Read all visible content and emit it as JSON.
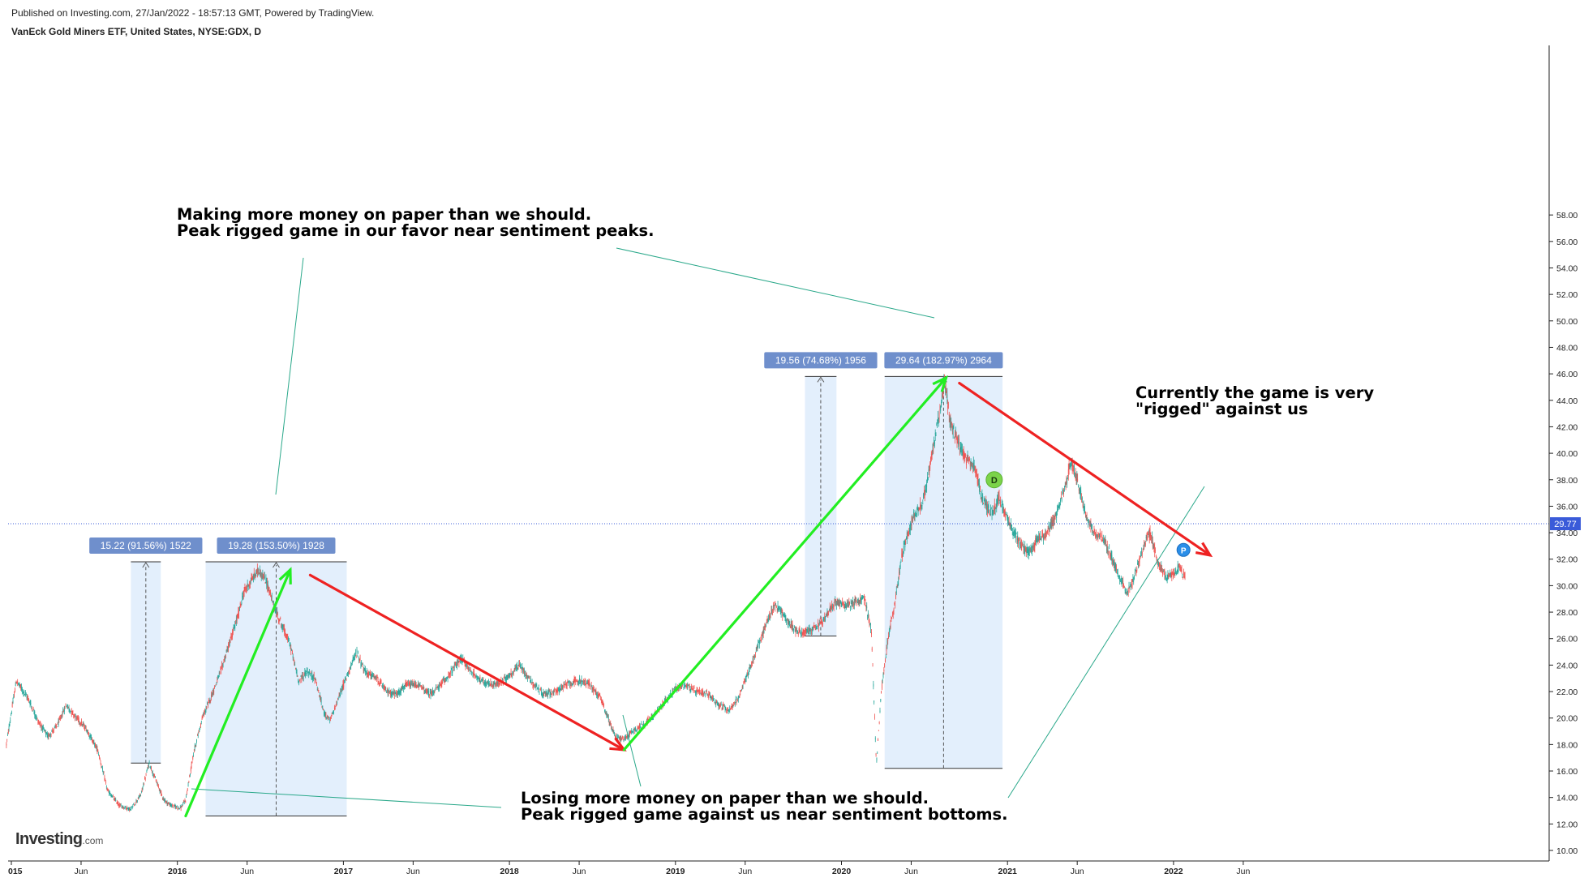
{
  "header": {
    "published": "Published on Investing.com, 27/Jan/2022 - 18:57:13 GMT, Powered by TradingView.",
    "symbol": "VanEck Gold Miners ETF, United States, NYSE:GDX, D"
  },
  "logo": {
    "main": "Investing",
    "sub": ".com"
  },
  "chart_data": {
    "type": "candlestick",
    "title": "VanEck Gold Miners ETF, United States, NYSE:GDX, D",
    "ylim": [
      9.0,
      59.0
    ],
    "y_ticks": [
      "10.00",
      "12.00",
      "14.00",
      "16.00",
      "18.00",
      "20.00",
      "22.00",
      "24.00",
      "26.00",
      "28.00",
      "30.00",
      "32.00",
      "34.00",
      "36.00",
      "38.00",
      "40.00",
      "42.00",
      "44.00",
      "46.00",
      "48.00",
      "50.00",
      "52.00",
      "54.00",
      "56.00",
      "58.00"
    ],
    "x_ticks": [
      {
        "label": "015",
        "t": 2015.0
      },
      {
        "label": "Jun",
        "t": 2015.42
      },
      {
        "label": "2016",
        "t": 2016.0
      },
      {
        "label": "Jun",
        "t": 2016.42
      },
      {
        "label": "2017",
        "t": 2017.0
      },
      {
        "label": "Jun",
        "t": 2017.42
      },
      {
        "label": "2018",
        "t": 2018.0
      },
      {
        "label": "Jun",
        "t": 2018.42
      },
      {
        "label": "2019",
        "t": 2019.0
      },
      {
        "label": "Jun",
        "t": 2019.42
      },
      {
        "label": "2020",
        "t": 2020.0
      },
      {
        "label": "Jun",
        "t": 2020.42
      },
      {
        "label": "2021",
        "t": 2021.0
      },
      {
        "label": "Jun",
        "t": 2021.42
      },
      {
        "label": "2022",
        "t": 2022.0
      },
      {
        "label": "Jun",
        "t": 2022.42
      }
    ],
    "last_price": "29.77",
    "price_path": [
      [
        2014.97,
        18.0
      ],
      [
        2015.03,
        22.8
      ],
      [
        2015.1,
        21.5
      ],
      [
        2015.16,
        19.8
      ],
      [
        2015.22,
        18.6
      ],
      [
        2015.28,
        19.5
      ],
      [
        2015.33,
        21.0
      ],
      [
        2015.38,
        20.2
      ],
      [
        2015.45,
        19.2
      ],
      [
        2015.52,
        17.6
      ],
      [
        2015.58,
        14.5
      ],
      [
        2015.65,
        13.4
      ],
      [
        2015.72,
        13.1
      ],
      [
        2015.78,
        14.2
      ],
      [
        2015.83,
        16.6
      ],
      [
        2015.87,
        15.3
      ],
      [
        2015.92,
        13.8
      ],
      [
        2015.96,
        13.4
      ],
      [
        2016.02,
        13.2
      ],
      [
        2016.05,
        13.8
      ],
      [
        2016.1,
        17.5
      ],
      [
        2016.15,
        20.0
      ],
      [
        2016.2,
        21.5
      ],
      [
        2016.26,
        23.5
      ],
      [
        2016.31,
        25.5
      ],
      [
        2016.36,
        27.5
      ],
      [
        2016.4,
        29.5
      ],
      [
        2016.45,
        30.5
      ],
      [
        2016.49,
        31.2
      ],
      [
        2016.54,
        30.2
      ],
      [
        2016.58,
        28.5
      ],
      [
        2016.63,
        27.0
      ],
      [
        2016.68,
        25.5
      ],
      [
        2016.73,
        22.8
      ],
      [
        2016.78,
        23.5
      ],
      [
        2016.83,
        23.0
      ],
      [
        2016.88,
        20.5
      ],
      [
        2016.92,
        19.8
      ],
      [
        2016.97,
        21.5
      ],
      [
        2017.03,
        23.5
      ],
      [
        2017.08,
        25.0
      ],
      [
        2017.13,
        23.5
      ],
      [
        2017.2,
        23.0
      ],
      [
        2017.26,
        22.0
      ],
      [
        2017.32,
        21.8
      ],
      [
        2017.38,
        22.5
      ],
      [
        2017.45,
        22.5
      ],
      [
        2017.52,
        21.8
      ],
      [
        2017.58,
        22.4
      ],
      [
        2017.65,
        23.5
      ],
      [
        2017.71,
        24.5
      ],
      [
        2017.77,
        23.5
      ],
      [
        2017.85,
        22.6
      ],
      [
        2017.92,
        22.5
      ],
      [
        2018.0,
        23.2
      ],
      [
        2018.06,
        24.0
      ],
      [
        2018.13,
        22.8
      ],
      [
        2018.2,
        21.8
      ],
      [
        2018.28,
        22.0
      ],
      [
        2018.35,
        22.6
      ],
      [
        2018.42,
        22.8
      ],
      [
        2018.48,
        22.6
      ],
      [
        2018.55,
        21.5
      ],
      [
        2018.6,
        19.8
      ],
      [
        2018.64,
        18.6
      ],
      [
        2018.69,
        18.4
      ],
      [
        2018.74,
        19.0
      ],
      [
        2018.8,
        19.5
      ],
      [
        2018.86,
        20.0
      ],
      [
        2018.92,
        21.0
      ],
      [
        2019.0,
        22.2
      ],
      [
        2019.06,
        22.5
      ],
      [
        2019.12,
        22.0
      ],
      [
        2019.2,
        21.8
      ],
      [
        2019.26,
        21.0
      ],
      [
        2019.32,
        20.6
      ],
      [
        2019.38,
        21.5
      ],
      [
        2019.44,
        23.5
      ],
      [
        2019.5,
        25.5
      ],
      [
        2019.56,
        27.5
      ],
      [
        2019.6,
        28.6
      ],
      [
        2019.64,
        28.0
      ],
      [
        2019.68,
        27.2
      ],
      [
        2019.74,
        26.5
      ],
      [
        2019.8,
        26.5
      ],
      [
        2019.86,
        27.0
      ],
      [
        2019.9,
        27.5
      ],
      [
        2019.96,
        28.8
      ],
      [
        2020.02,
        28.5
      ],
      [
        2020.08,
        28.8
      ],
      [
        2020.14,
        29.0
      ],
      [
        2020.18,
        26.5
      ],
      [
        2020.2,
        20.0
      ],
      [
        2020.21,
        16.5
      ],
      [
        2020.24,
        22.0
      ],
      [
        2020.28,
        26.0
      ],
      [
        2020.32,
        28.5
      ],
      [
        2020.36,
        32.0
      ],
      [
        2020.4,
        34.0
      ],
      [
        2020.44,
        35.5
      ],
      [
        2020.48,
        36.0
      ],
      [
        2020.52,
        38.0
      ],
      [
        2020.56,
        41.0
      ],
      [
        2020.59,
        43.0
      ],
      [
        2020.62,
        45.5
      ],
      [
        2020.66,
        42.0
      ],
      [
        2020.7,
        41.0
      ],
      [
        2020.75,
        39.5
      ],
      [
        2020.8,
        39.0
      ],
      [
        2020.85,
        36.5
      ],
      [
        2020.9,
        35.5
      ],
      [
        2020.95,
        36.5
      ],
      [
        2021.0,
        35.0
      ],
      [
        2021.04,
        34.0
      ],
      [
        2021.08,
        33.0
      ],
      [
        2021.13,
        32.5
      ],
      [
        2021.18,
        33.5
      ],
      [
        2021.24,
        34.0
      ],
      [
        2021.3,
        35.5
      ],
      [
        2021.36,
        38.0
      ],
      [
        2021.38,
        39.5
      ],
      [
        2021.42,
        38.0
      ],
      [
        2021.47,
        35.5
      ],
      [
        2021.52,
        34.0
      ],
      [
        2021.58,
        33.5
      ],
      [
        2021.63,
        32.0
      ],
      [
        2021.68,
        30.5
      ],
      [
        2021.72,
        29.5
      ],
      [
        2021.76,
        30.5
      ],
      [
        2021.82,
        33.0
      ],
      [
        2021.86,
        34.0
      ],
      [
        2021.9,
        32.0
      ],
      [
        2021.96,
        30.5
      ],
      [
        2022.0,
        30.8
      ],
      [
        2022.04,
        31.5
      ],
      [
        2022.07,
        30.5
      ]
    ],
    "measure_boxes": [
      {
        "label": "15.22 (91.56%) 1522",
        "t0": 2015.72,
        "t1": 2015.9,
        "low": 16.6,
        "high": 31.8
      },
      {
        "label": "19.28 (153.50%) 1928",
        "t0": 2016.17,
        "t1": 2017.02,
        "low": 12.6,
        "high": 31.8
      },
      {
        "label": "19.56 (74.68%) 1956",
        "t0": 2019.78,
        "t1": 2019.97,
        "low": 26.2,
        "high": 45.8
      },
      {
        "label": "29.64 (182.97%) 2964",
        "t0": 2020.26,
        "t1": 2020.97,
        "low": 16.2,
        "high": 45.8
      }
    ],
    "arrows": [
      {
        "color": "green",
        "from": [
          2016.05,
          12.6
        ],
        "to": [
          2016.68,
          31.2
        ]
      },
      {
        "color": "red",
        "from": [
          2016.8,
          30.8
        ],
        "to": [
          2018.69,
          17.6
        ]
      },
      {
        "color": "green",
        "from": [
          2018.69,
          17.6
        ],
        "to": [
          2020.63,
          45.7
        ]
      },
      {
        "color": "red",
        "from": [
          2020.71,
          45.3
        ],
        "to": [
          2022.22,
          32.3
        ]
      }
    ],
    "event_markers": [
      {
        "label": "D",
        "t": 2020.92,
        "price": 38.0
      },
      {
        "label": "P",
        "t": 2022.06,
        "price": 32.7
      }
    ],
    "annotations": [
      {
        "lines": [
          "Making more money on paper than we should.",
          "Peak rigged game in our favor near sentiment peaks."
        ]
      },
      {
        "lines": [
          "Losing more money on paper than we should.",
          "Peak rigged game against us near sentiment bottoms."
        ]
      },
      {
        "lines": [
          "Currently the game is very",
          "\"rigged\" against us"
        ]
      }
    ]
  }
}
